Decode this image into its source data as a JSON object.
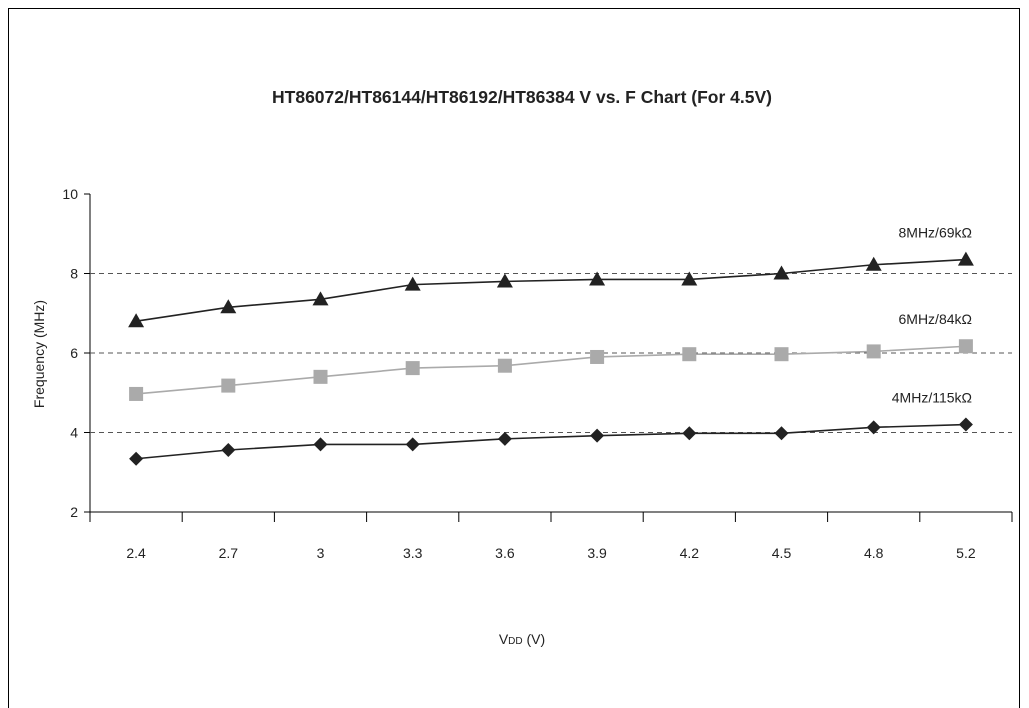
{
  "chart_data": {
    "type": "line",
    "title": "HT86072/HT86144/HT86192/HT86384 V vs. F Chart (For 4.5V)",
    "xlabel_main": "V",
    "xlabel_sub": "DD",
    "xlabel_unit": " (V)",
    "ylabel": "Frequency (MHz)",
    "x": [
      "2.4",
      "2.7",
      "3",
      "3.3",
      "3.6",
      "3.9",
      "4.2",
      "4.5",
      "4.8",
      "5.2"
    ],
    "ylim": [
      2,
      10
    ],
    "yticks": [
      "2",
      "4",
      "6",
      "8",
      "10"
    ],
    "grid_y": [
      4,
      6,
      8
    ],
    "series": [
      {
        "name": "8MHz/69kΩ",
        "marker": "triangle",
        "color": "#222222",
        "values": [
          6.8,
          7.15,
          7.35,
          7.72,
          7.8,
          7.85,
          7.85,
          8.0,
          8.22,
          8.35
        ]
      },
      {
        "name": "6MHz/84kΩ",
        "marker": "square",
        "color": "#aaaaaa",
        "values": [
          4.97,
          5.18,
          5.4,
          5.62,
          5.68,
          5.9,
          5.97,
          5.97,
          6.04,
          6.17
        ]
      },
      {
        "name": "4MHz/115kΩ",
        "marker": "diamond",
        "color": "#222222",
        "values": [
          3.34,
          3.56,
          3.7,
          3.7,
          3.84,
          3.92,
          3.98,
          3.98,
          4.13,
          4.2
        ]
      }
    ]
  }
}
